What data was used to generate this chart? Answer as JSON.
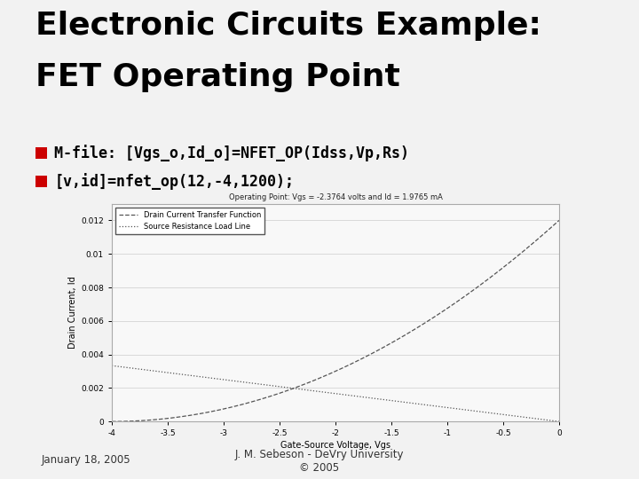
{
  "title_line1": "Electronic Circuits Example:",
  "title_line2": "FET Operating Point",
  "bullet1": "M-file: [Vgs_o,Id_o]=NFET_OP(Idss,Vp,Rs)",
  "bullet2": "[v,id]=nfet_op(12,-4,1200);",
  "slide_bg_light": "#f0f0f0",
  "slide_bg_dark": "#e0e0e0",
  "title_color": "#000000",
  "title_bar_color": "#cc0000",
  "bullet_color": "#000000",
  "bullet_square_color": "#cc0000",
  "footer_left": "January 18, 2005",
  "footer_center": "J. M. Sebeson - DeVry University\n© 2005",
  "plot_title": "Operating Point: Vgs = -2.3764 volts and Id = 1.9765 mA",
  "xlabel": "Gate-Source Voltage, Vgs",
  "ylabel": "Drain Current, Id",
  "legend1": "Drain Current Transfer Function",
  "legend2": "Source Resistance Load Line",
  "Idss": 0.012,
  "Vp": -4,
  "Rs": 1200,
  "vgs_min": -4,
  "vgs_max": 0,
  "ylim_max": 0.013,
  "yticks": [
    0,
    0.002,
    0.004,
    0.006,
    0.008,
    0.01,
    0.012
  ],
  "ytick_labels": [
    "0",
    "0.002",
    "0.004",
    "0.006",
    "0.008",
    "0.01",
    "0.012"
  ],
  "xticks": [
    -4,
    -3.5,
    -3,
    -2.5,
    -2,
    -1.5,
    -1,
    -0.5,
    0
  ],
  "xtick_labels": [
    "-4",
    "-3.5",
    "-3",
    "-2.5",
    "-2",
    "-1.5",
    "-1",
    "-0.5",
    "0"
  ],
  "stripe_colors": [
    "#f2f2f2",
    "#e8e8e8"
  ],
  "stripe_count": 20,
  "plot_bg": "#f8f8f8",
  "plot_edge": "#aaaaaa"
}
